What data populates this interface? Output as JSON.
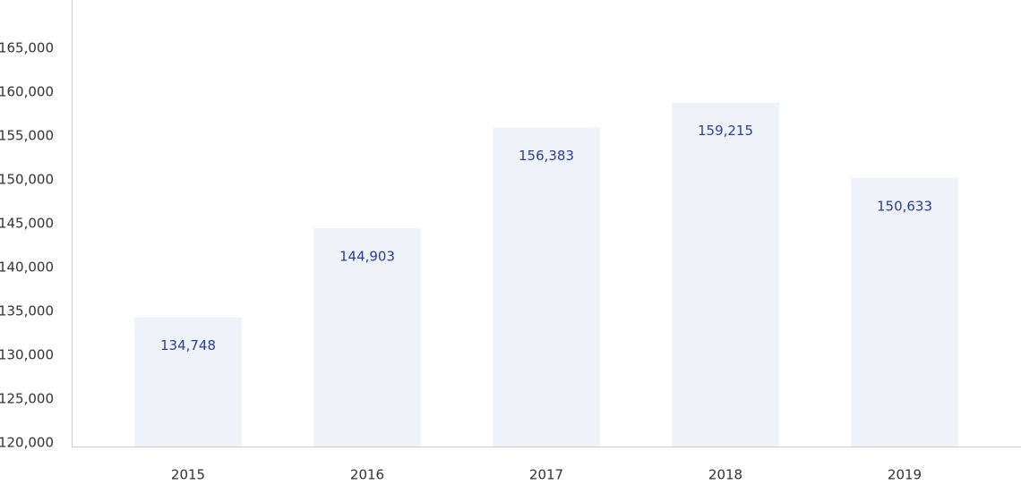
{
  "chart_data": {
    "type": "bar",
    "categories": [
      "2015",
      "2016",
      "2017",
      "2018",
      "2019"
    ],
    "values": [
      134748,
      144903,
      156383,
      159215,
      150633
    ],
    "value_labels": [
      "134,748",
      "144,903",
      "156,383",
      "159,215",
      "150,633"
    ],
    "color": "#eff2f8",
    "label_color": "#2a3f9d",
    "ylim": [
      120000,
      170000
    ],
    "yticks": [
      {
        "value": 120000,
        "label": "120,000"
      },
      {
        "value": 125000,
        "label": "125,000"
      },
      {
        "value": 130000,
        "label": "130,000"
      },
      {
        "value": 135000,
        "label": "135,000"
      },
      {
        "value": 140000,
        "label": "140,000"
      },
      {
        "value": 145000,
        "label": "145,000"
      },
      {
        "value": 150000,
        "label": "150,000"
      },
      {
        "value": 155000,
        "label": "155,000"
      },
      {
        "value": 160000,
        "label": "160,000"
      },
      {
        "value": 165000,
        "label": "165,000"
      }
    ],
    "grid": false
  }
}
